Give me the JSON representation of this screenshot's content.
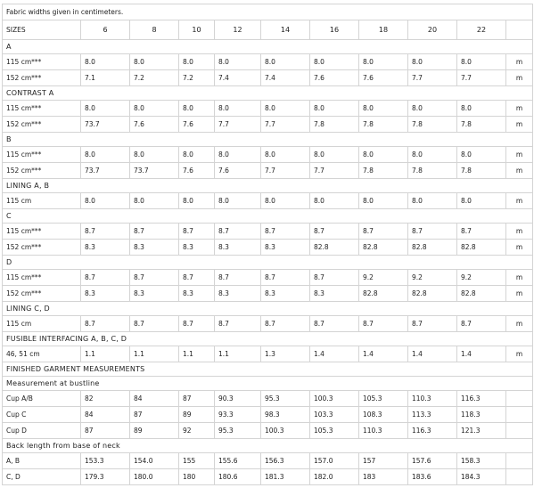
{
  "note": "Fabric widths given in centimeters.",
  "table": {
    "header": [
      "SIZES",
      "6",
      "8",
      "10",
      "12",
      "14",
      "16",
      "18",
      "20",
      "22"
    ],
    "rows": [
      {
        "section": "A"
      },
      {
        "label": "115 cm***",
        "cells": [
          "8.0",
          "8.0",
          "8.0",
          "8.0",
          "8.0",
          "8.0",
          "8.0",
          "8.0",
          "8.0"
        ],
        "unit": "m"
      },
      {
        "label": "152 cm***",
        "cells": [
          "7.1",
          "7.2",
          "7.2",
          "7.4",
          "7.4",
          "7.6",
          "7.6",
          "7.7",
          "7.7"
        ],
        "unit": "m"
      },
      {
        "section": "CONTRAST A"
      },
      {
        "label": "115 cm***",
        "cells": [
          "8.0",
          "8.0",
          "8.0",
          "8.0",
          "8.0",
          "8.0",
          "8.0",
          "8.0",
          "8.0"
        ],
        "unit": "m"
      },
      {
        "label": "152 cm***",
        "cells": [
          "73.7",
          "7.6",
          "7.6",
          "7.7",
          "7.7",
          "7.8",
          "7.8",
          "7.8",
          "7.8"
        ],
        "unit": "m"
      },
      {
        "section": "B"
      },
      {
        "label": "115 cm***",
        "cells": [
          "8.0",
          "8.0",
          "8.0",
          "8.0",
          "8.0",
          "8.0",
          "8.0",
          "8.0",
          "8.0"
        ],
        "unit": "m"
      },
      {
        "label": "152 cm***",
        "cells": [
          "73.7",
          "73.7",
          "7.6",
          "7.6",
          "7.7",
          "7.7",
          "7.8",
          "7.8",
          "7.8"
        ],
        "unit": "m"
      },
      {
        "section": "LINING A, B"
      },
      {
        "label": "115 cm",
        "cells": [
          "8.0",
          "8.0",
          "8.0",
          "8.0",
          "8.0",
          "8.0",
          "8.0",
          "8.0",
          "8.0"
        ],
        "unit": "m"
      },
      {
        "section": "C"
      },
      {
        "label": "115 cm***",
        "cells": [
          "8.7",
          "8.7",
          "8.7",
          "8.7",
          "8.7",
          "8.7",
          "8.7",
          "8.7",
          "8.7"
        ],
        "unit": "m"
      },
      {
        "label": "152 cm***",
        "cells": [
          "8.3",
          "8.3",
          "8.3",
          "8.3",
          "8.3",
          "82.8",
          "82.8",
          "82.8",
          "82.8"
        ],
        "unit": "m"
      },
      {
        "section": "D"
      },
      {
        "label": "115 cm***",
        "cells": [
          "8.7",
          "8.7",
          "8.7",
          "8.7",
          "8.7",
          "8.7",
          "9.2",
          "9.2",
          "9.2"
        ],
        "unit": "m"
      },
      {
        "label": "152 cm***",
        "cells": [
          "8.3",
          "8.3",
          "8.3",
          "8.3",
          "8.3",
          "8.3",
          "82.8",
          "82.8",
          "82.8"
        ],
        "unit": "m"
      },
      {
        "section": "LINING C, D"
      },
      {
        "label": "115 cm",
        "cells": [
          "8.7",
          "8.7",
          "8.7",
          "8.7",
          "8.7",
          "8.7",
          "8.7",
          "8.7",
          "8.7"
        ],
        "unit": "m"
      },
      {
        "section": "FUSIBLE INTERFACING A, B, C, D"
      },
      {
        "label": "46, 51 cm",
        "cells": [
          "1.1",
          "1.1",
          "1.1",
          "1.1",
          "1.3",
          "1.4",
          "1.4",
          "1.4",
          "1.4"
        ],
        "unit": "m"
      },
      {
        "section": "FINISHED GARMENT MEASUREMENTS"
      },
      {
        "section": "Measurement at bustline"
      },
      {
        "label": "Cup A/B",
        "cells": [
          "82",
          "84",
          "87",
          "90.3",
          "95.3",
          "100.3",
          "105.3",
          "110.3",
          "116.3"
        ]
      },
      {
        "label": "Cup C",
        "cells": [
          "84",
          "87",
          "89",
          "93.3",
          "98.3",
          "103.3",
          "108.3",
          "113.3",
          "118.3"
        ]
      },
      {
        "label": "Cup D",
        "cells": [
          "87",
          "89",
          "92",
          "95.3",
          "100.3",
          "105.3",
          "110.3",
          "116.3",
          "121.3"
        ]
      },
      {
        "section": "Back length from base of neck"
      },
      {
        "label": "A, B",
        "cells": [
          "153.3",
          "154.0",
          "155",
          "155.6",
          "156.3",
          "157.0",
          "157",
          "157.6",
          "158.3"
        ]
      },
      {
        "label": "C, D",
        "cells": [
          "179.3",
          "180.0",
          "180",
          "180.6",
          "181.3",
          "182.0",
          "183",
          "183.6",
          "184.3"
        ]
      }
    ]
  }
}
